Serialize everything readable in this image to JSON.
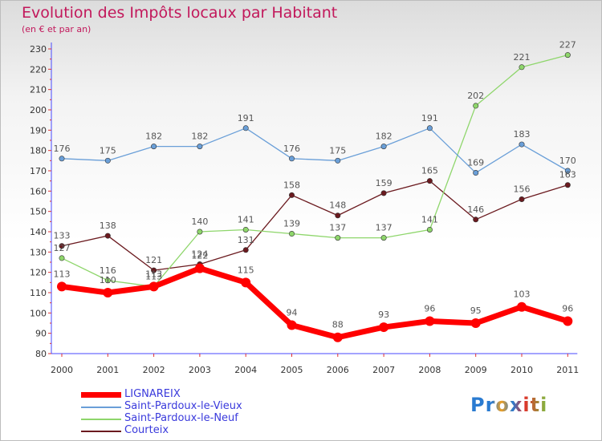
{
  "title": "Evolution des Impôts locaux par Habitant",
  "subtitle": "(en € et par an)",
  "logo": "Proxiti",
  "chart_data": {
    "type": "line",
    "categories": [
      "2000",
      "2001",
      "2002",
      "2003",
      "2004",
      "2005",
      "2006",
      "2007",
      "2008",
      "2009",
      "2010",
      "2011"
    ],
    "ylim": [
      80,
      230
    ],
    "yticks": [
      80,
      90,
      100,
      110,
      120,
      130,
      140,
      150,
      160,
      170,
      180,
      190,
      200,
      210,
      220,
      230
    ],
    "grid": false,
    "legend_position": "bottom-left",
    "series": [
      {
        "name": "LIGNAREIX",
        "color": "#ff0000",
        "values": [
          113,
          110,
          113,
          122,
          115,
          94,
          88,
          93,
          96,
          95,
          103,
          96
        ]
      },
      {
        "name": "Saint-Pardoux-le-Vieux",
        "color": "#6a9fd8",
        "values": [
          176,
          175,
          182,
          182,
          191,
          176,
          175,
          182,
          191,
          169,
          183,
          170
        ]
      },
      {
        "name": "Saint-Pardoux-le-Neuf",
        "color": "#8ed66b",
        "values": [
          127,
          116,
          113,
          140,
          141,
          139,
          137,
          137,
          141,
          202,
          221,
          227
        ]
      },
      {
        "name": "Courteix",
        "color": "#6b1a1f",
        "values": [
          133,
          138,
          121,
          124,
          131,
          158,
          148,
          159,
          165,
          146,
          156,
          163
        ]
      }
    ]
  }
}
